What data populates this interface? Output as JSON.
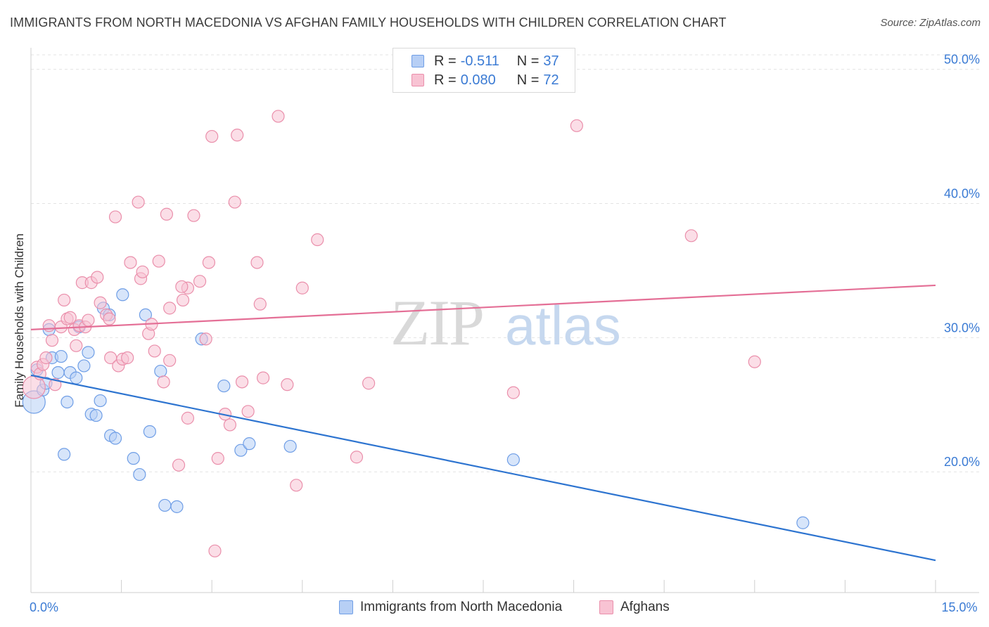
{
  "title": "IMMIGRANTS FROM NORTH MACEDONIA VS AFGHAN FAMILY HOUSEHOLDS WITH CHILDREN CORRELATION CHART",
  "source": "Source: ZipAtlas.com",
  "watermark": {
    "zip": "ZIP",
    "atlas": "atlas"
  },
  "colors": {
    "blue_fill": "#b7cff5",
    "blue_stroke": "#6f9ee6",
    "blue_line": "#2d74d0",
    "pink_fill": "#f8c3d3",
    "pink_stroke": "#ea8fab",
    "pink_line": "#e46f96",
    "tick_label": "#3b7bd4",
    "grid": "#e3e3e3"
  },
  "legend": {
    "blue": {
      "r_label": "R =",
      "r_value": "-0.511",
      "n_label": "N =",
      "n_value": "37"
    },
    "pink": {
      "r_label": "R =",
      "r_value": "0.080",
      "n_label": "N =",
      "n_value": "72"
    }
  },
  "chart_data": {
    "type": "scatter",
    "title": "IMMIGRANTS FROM NORTH MACEDONIA VS AFGHAN FAMILY HOUSEHOLDS WITH CHILDREN CORRELATION CHART",
    "xlabel": "",
    "ylabel": "Family Households with Children",
    "xlim": [
      0,
      15
    ],
    "ylim": [
      11,
      51.5
    ],
    "x_tick_labels": [
      {
        "value": 0,
        "label": "0.0%"
      },
      {
        "value": 15,
        "label": "15.0%"
      }
    ],
    "y_ticks": [
      {
        "value": 20,
        "label": "20.0%"
      },
      {
        "value": 30,
        "label": "30.0%"
      },
      {
        "value": 40,
        "label": "40.0%"
      },
      {
        "value": 50,
        "label": "50.0%"
      }
    ],
    "x_minor_ticks": [
      1.5,
      3,
      4.5,
      6,
      7.5,
      9,
      10.5,
      12,
      13.5,
      15
    ],
    "grid": true,
    "legend_position": "top-center",
    "series": [
      {
        "name": "Immigrants from North Macedonia",
        "color": "blue",
        "trend": [
          [
            0,
            27.2
          ],
          [
            15,
            13.4
          ]
        ],
        "points": [
          [
            0.05,
            25.2,
            "large"
          ],
          [
            0.1,
            27.6
          ],
          [
            0.2,
            26.1
          ],
          [
            0.25,
            26.6
          ],
          [
            0.3,
            30.6
          ],
          [
            0.35,
            28.5
          ],
          [
            0.45,
            27.4
          ],
          [
            0.5,
            28.6
          ],
          [
            0.55,
            21.3
          ],
          [
            0.6,
            25.2
          ],
          [
            0.65,
            27.4
          ],
          [
            0.75,
            27.0
          ],
          [
            0.8,
            30.8
          ],
          [
            0.88,
            27.9
          ],
          [
            0.95,
            28.9
          ],
          [
            1.0,
            24.3
          ],
          [
            1.08,
            24.2
          ],
          [
            1.15,
            25.3
          ],
          [
            1.2,
            32.2
          ],
          [
            1.3,
            31.7
          ],
          [
            1.32,
            22.7
          ],
          [
            1.4,
            22.5
          ],
          [
            1.52,
            33.2
          ],
          [
            1.7,
            21.0
          ],
          [
            1.8,
            19.8
          ],
          [
            1.9,
            31.7
          ],
          [
            1.97,
            23.0
          ],
          [
            2.15,
            27.5
          ],
          [
            2.22,
            17.5
          ],
          [
            2.42,
            17.4
          ],
          [
            2.83,
            29.9
          ],
          [
            3.2,
            26.4
          ],
          [
            3.48,
            21.6
          ],
          [
            3.62,
            22.1
          ],
          [
            4.3,
            21.9
          ],
          [
            8.0,
            20.9
          ],
          [
            12.8,
            16.2
          ]
        ]
      },
      {
        "name": "Afghans",
        "color": "pink",
        "trend": [
          [
            0,
            30.6
          ],
          [
            15,
            33.9
          ]
        ],
        "points": [
          [
            0.05,
            26.3,
            "large"
          ],
          [
            0.1,
            27.8
          ],
          [
            0.15,
            27.3
          ],
          [
            0.2,
            28.0
          ],
          [
            0.25,
            28.5
          ],
          [
            0.3,
            30.9
          ],
          [
            0.35,
            29.8
          ],
          [
            0.4,
            26.5
          ],
          [
            0.5,
            30.8
          ],
          [
            0.55,
            32.8
          ],
          [
            0.6,
            31.4
          ],
          [
            0.65,
            31.5
          ],
          [
            0.72,
            30.6
          ],
          [
            0.75,
            29.4
          ],
          [
            0.8,
            30.9
          ],
          [
            0.85,
            34.1
          ],
          [
            0.9,
            30.8
          ],
          [
            0.95,
            31.3
          ],
          [
            1.0,
            34.1
          ],
          [
            1.1,
            34.5
          ],
          [
            1.15,
            32.6
          ],
          [
            1.25,
            31.7
          ],
          [
            1.3,
            31.4
          ],
          [
            1.32,
            28.5
          ],
          [
            1.4,
            39.0
          ],
          [
            1.45,
            27.9
          ],
          [
            1.52,
            28.4
          ],
          [
            1.6,
            28.5
          ],
          [
            1.65,
            35.6
          ],
          [
            1.78,
            40.1
          ],
          [
            1.82,
            34.4
          ],
          [
            1.85,
            34.9
          ],
          [
            1.95,
            30.3
          ],
          [
            2.0,
            31.0
          ],
          [
            2.05,
            29.0
          ],
          [
            2.12,
            35.7
          ],
          [
            2.2,
            26.7
          ],
          [
            2.25,
            39.2
          ],
          [
            2.3,
            32.2
          ],
          [
            2.3,
            28.3
          ],
          [
            2.45,
            20.5
          ],
          [
            2.52,
            32.8
          ],
          [
            2.6,
            24.0
          ],
          [
            2.6,
            33.7
          ],
          [
            2.7,
            39.1
          ],
          [
            2.8,
            34.2
          ],
          [
            2.9,
            29.9
          ],
          [
            2.95,
            35.6
          ],
          [
            3.0,
            45.0
          ],
          [
            3.05,
            14.1
          ],
          [
            3.1,
            21.0
          ],
          [
            3.22,
            24.3
          ],
          [
            3.3,
            23.5
          ],
          [
            3.38,
            40.1
          ],
          [
            3.42,
            45.1
          ],
          [
            3.5,
            26.7
          ],
          [
            3.6,
            24.5
          ],
          [
            3.75,
            35.6
          ],
          [
            3.8,
            32.5
          ],
          [
            3.85,
            27.0
          ],
          [
            4.1,
            46.5
          ],
          [
            4.25,
            26.5
          ],
          [
            4.4,
            19.0
          ],
          [
            4.5,
            33.7
          ],
          [
            4.75,
            37.3
          ],
          [
            5.4,
            21.1
          ],
          [
            5.6,
            26.6
          ],
          [
            8.0,
            25.9
          ],
          [
            9.05,
            45.8
          ],
          [
            10.95,
            37.6
          ],
          [
            12.0,
            28.2
          ],
          [
            2.5,
            33.8
          ]
        ]
      }
    ]
  }
}
